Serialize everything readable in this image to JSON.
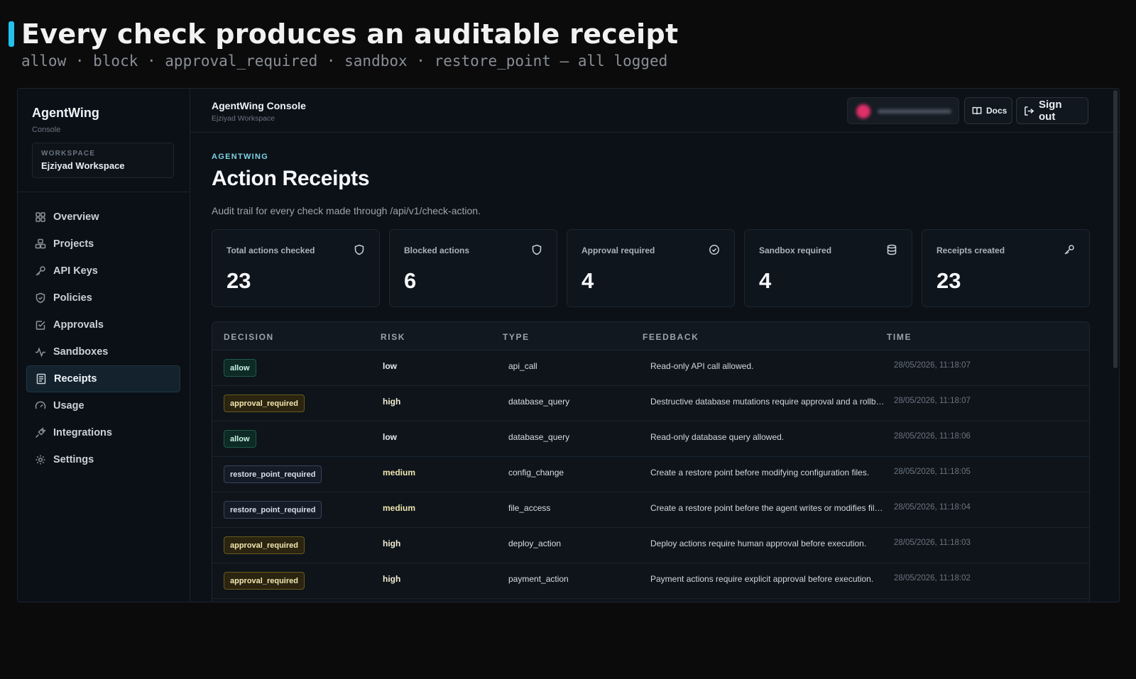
{
  "hero": {
    "title": "Every check produces an auditable receipt",
    "subtitle": "allow · block · approval_required · sandbox · restore_point — all logged"
  },
  "sidebar": {
    "brand": "AgentWing",
    "brand_sub": "Console",
    "workspace_label": "WORKSPACE",
    "workspace_name": "Ejziyad Workspace",
    "items": [
      {
        "label": "Overview",
        "icon": "grid-icon"
      },
      {
        "label": "Projects",
        "icon": "boxes-icon"
      },
      {
        "label": "API Keys",
        "icon": "key-icon"
      },
      {
        "label": "Policies",
        "icon": "shield-icon"
      },
      {
        "label": "Approvals",
        "icon": "check-square-icon"
      },
      {
        "label": "Sandboxes",
        "icon": "activity-icon"
      },
      {
        "label": "Receipts",
        "icon": "receipt-icon",
        "active": true
      },
      {
        "label": "Usage",
        "icon": "gauge-icon"
      },
      {
        "label": "Integrations",
        "icon": "plug-icon"
      },
      {
        "label": "Settings",
        "icon": "gear-icon"
      }
    ]
  },
  "topbar": {
    "title": "AgentWing Console",
    "subtitle": "Ejziyad Workspace",
    "docs_label": "Docs",
    "signout_label": "Sign out"
  },
  "main": {
    "eyebrow": "AGENTWING",
    "title": "Action Receipts",
    "description": "Audit trail for every check made through /api/v1/check-action."
  },
  "stats": [
    {
      "label": "Total actions checked",
      "value": "23",
      "icon": "shield-icon"
    },
    {
      "label": "Blocked actions",
      "value": "6",
      "icon": "shield-icon"
    },
    {
      "label": "Approval required",
      "value": "4",
      "icon": "check-circle-icon"
    },
    {
      "label": "Sandbox required",
      "value": "4",
      "icon": "database-icon"
    },
    {
      "label": "Receipts created",
      "value": "23",
      "icon": "key-icon"
    }
  ],
  "table": {
    "columns": [
      "DECISION",
      "RISK",
      "TYPE",
      "FEEDBACK",
      "TIME"
    ],
    "rows": [
      {
        "decision": "allow",
        "risk": "low",
        "type": "api_call",
        "feedback": "Read-only API call allowed.",
        "time": "28/05/2026, 11:18:07"
      },
      {
        "decision": "approval_required",
        "risk": "high",
        "type": "database_query",
        "feedback": "Destructive database mutations require approval and a rollba...",
        "time": "28/05/2026, 11:18:07"
      },
      {
        "decision": "allow",
        "risk": "low",
        "type": "database_query",
        "feedback": "Read-only database query allowed.",
        "time": "28/05/2026, 11:18:06"
      },
      {
        "decision": "restore_point_required",
        "risk": "medium",
        "type": "config_change",
        "feedback": "Create a restore point before modifying configuration files.",
        "time": "28/05/2026, 11:18:05"
      },
      {
        "decision": "restore_point_required",
        "risk": "medium",
        "type": "file_access",
        "feedback": "Create a restore point before the agent writes or modifies files.",
        "time": "28/05/2026, 11:18:04"
      },
      {
        "decision": "approval_required",
        "risk": "high",
        "type": "deploy_action",
        "feedback": "Deploy actions require human approval before execution.",
        "time": "28/05/2026, 11:18:03"
      },
      {
        "decision": "approval_required",
        "risk": "high",
        "type": "payment_action",
        "feedback": "Payment actions require explicit approval before execution.",
        "time": "28/05/2026, 11:18:02"
      }
    ]
  },
  "colors": {
    "accent": "#22c1ee",
    "allow": "#1e5a48",
    "approval": "#6a5a1c",
    "restore": "#3a4458"
  }
}
